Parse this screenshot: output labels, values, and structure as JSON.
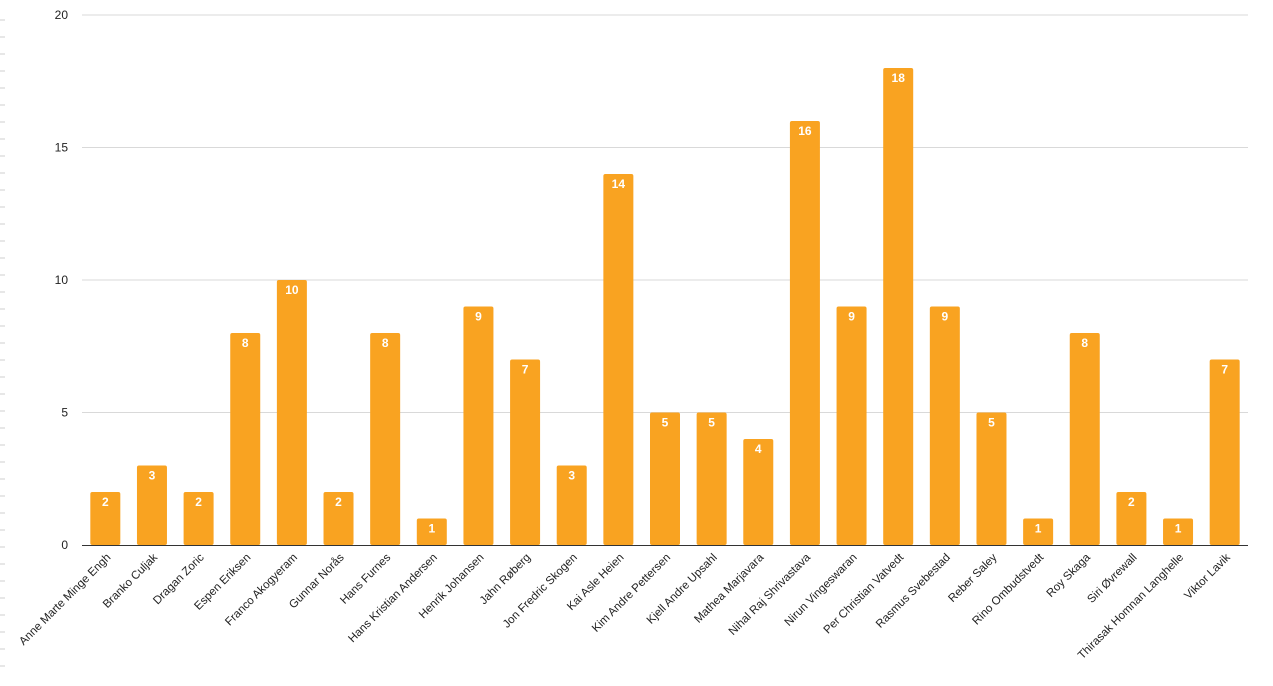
{
  "chart_data": {
    "type": "bar",
    "categories": [
      "Anne Marte Minge Engh",
      "Branko Culjak",
      "Dragan Zoric",
      "Espen Eriksen",
      "Franco Akogyeram",
      "Gunnar Norås",
      "Hans Furnes",
      "Hans Kristian Andersen",
      "Henrik Johansen",
      "Jahn Røberg",
      "Jon Fredric Skogen",
      "Kai Asle Heien",
      "Kim Andre Pettersen",
      "Kjell Andre Upsahl",
      "Mathea Marjavara",
      "Nihal Raj Shrivastava",
      "Nirun Vingeswaran",
      "Per Christian Vatvedt",
      "Rasmus Svebestad",
      "Reber Saley",
      "Rino Ombudstvedt",
      "Roy Skaga",
      "Siri Øvrewall",
      "Thirasak Homnan Langhelle",
      "Viktor Lavik"
    ],
    "values": [
      2,
      3,
      2,
      8,
      10,
      2,
      8,
      1,
      9,
      7,
      3,
      14,
      5,
      5,
      4,
      16,
      9,
      18,
      9,
      5,
      1,
      8,
      2,
      1,
      7
    ],
    "data_labels": [
      "2",
      "3",
      "2",
      "8",
      "10",
      "2",
      "8",
      "1",
      "9",
      "7",
      "3",
      "14",
      "5",
      "5",
      "4",
      "16",
      "9",
      "18",
      "9",
      "5",
      "1",
      "8",
      "2",
      "1",
      "7"
    ],
    "y_ticks": [
      "0",
      "5",
      "10",
      "15",
      "20"
    ],
    "ylim": [
      0,
      20
    ],
    "grid": true,
    "legend": "none",
    "bar_color": "#f9a321",
    "label_color": "#ffffff"
  }
}
